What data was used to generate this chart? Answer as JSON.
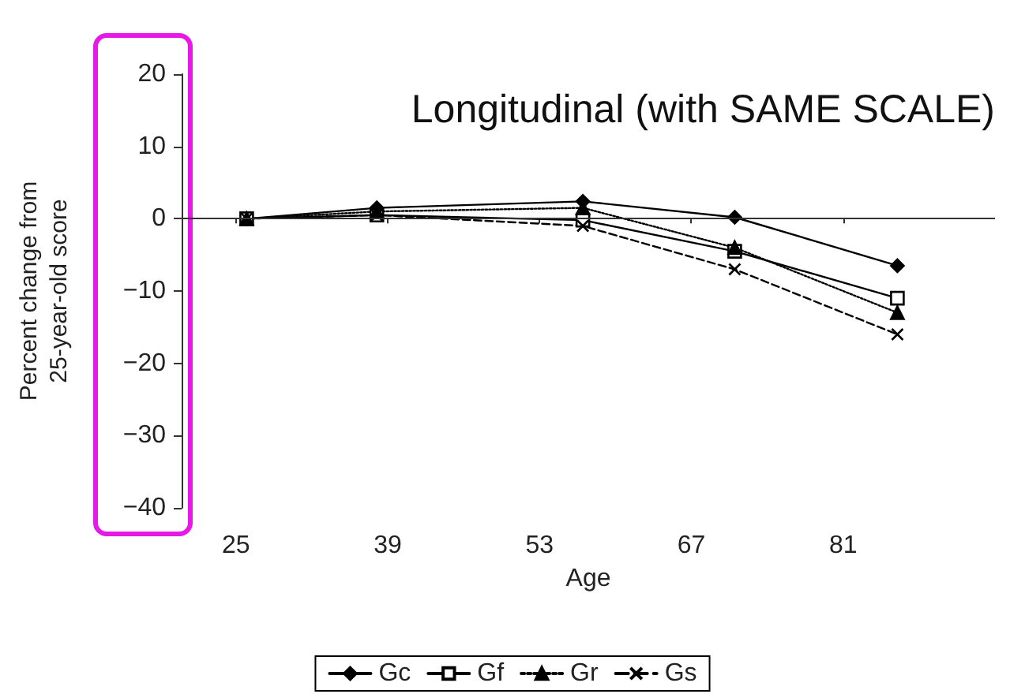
{
  "chart_data": {
    "type": "line",
    "title": "Longitudinal (with SAME SCALE)",
    "xlabel": "Age",
    "ylabel": "Percent change from\n25-year-old score",
    "x": [
      26,
      38,
      57,
      71,
      86
    ],
    "series": [
      {
        "name": "Gc",
        "color": "#000000",
        "marker": "diamond",
        "line_style": "solid",
        "values": [
          0,
          1.5,
          2.4,
          0.2,
          -6.5
        ]
      },
      {
        "name": "Gf",
        "color": "#000000",
        "marker": "square",
        "line_style": "solid",
        "values": [
          0,
          0.5,
          -0.2,
          -4.5,
          -11
        ]
      },
      {
        "name": "Gr",
        "color": "#000000",
        "marker": "triangle",
        "line_style": "dotted",
        "values": [
          0,
          1,
          1.5,
          -4,
          -13
        ]
      },
      {
        "name": "Gs",
        "color": "#000000",
        "marker": "cross",
        "line_style": "dashed",
        "values": [
          0,
          0.5,
          -1,
          -7,
          -16
        ]
      }
    ],
    "xlim": [
      20,
      95
    ],
    "xticks": [
      25,
      39,
      53,
      67,
      81
    ],
    "ylim": [
      -40,
      20
    ],
    "yticks": [
      {
        "value": -40,
        "label": "−40"
      },
      {
        "value": -30,
        "label": "−30"
      },
      {
        "value": -20,
        "label": "−20"
      },
      {
        "value": -10,
        "label": "−10"
      },
      0,
      10,
      20
    ],
    "ref_lines": [
      {
        "axis": "y",
        "value": 0,
        "color": "#333333",
        "line_style": "solid"
      }
    ],
    "grid": false,
    "legend": "bottom"
  }
}
